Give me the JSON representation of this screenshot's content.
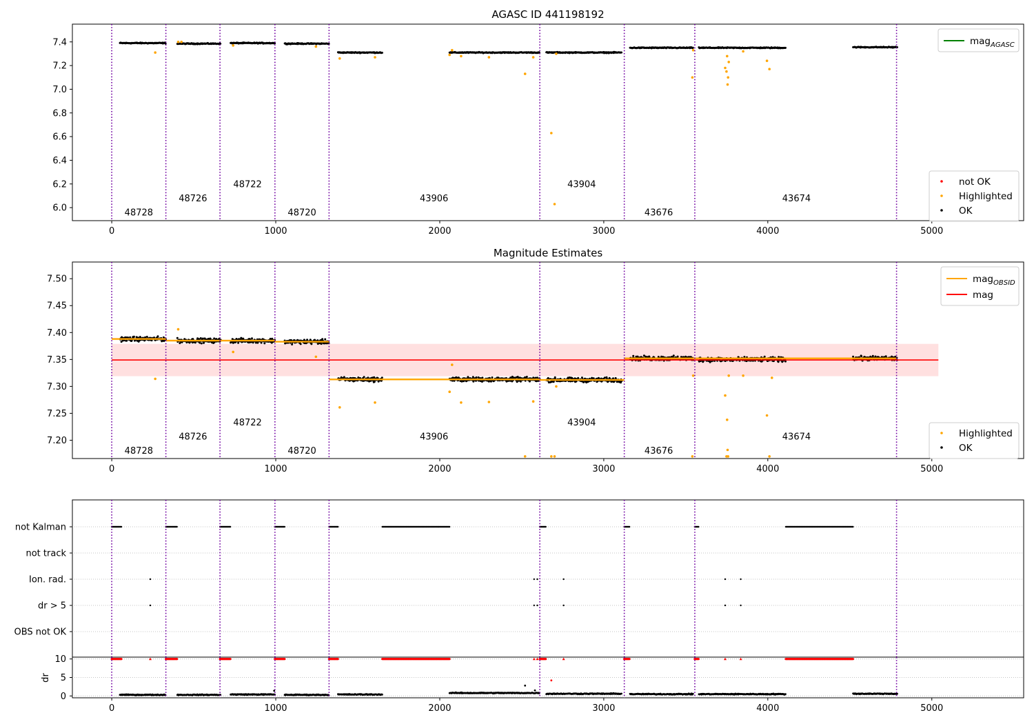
{
  "chart_data": [
    {
      "type": "scatter",
      "title": "AGASC ID 441198192",
      "xlim": [
        -240,
        5560
      ],
      "ylim": [
        5.89,
        7.55
      ],
      "x_ticks": [
        0,
        1000,
        2000,
        3000,
        4000,
        5000
      ],
      "y_ticks": [
        6.0,
        6.2,
        6.4,
        6.6,
        6.8,
        7.0,
        7.2,
        7.4
      ],
      "grid": false,
      "legend_upper": {
        "placement": "top-right",
        "entries": [
          {
            "label": "mag",
            "sub": "AGASC",
            "color": "#008000",
            "kind": "line"
          }
        ]
      },
      "legend_lower": {
        "placement": "bottom-right",
        "entries": [
          {
            "label": "not OK",
            "color": "#ff0000",
            "kind": "dot"
          },
          {
            "label": "Highlighted",
            "color": "#ffa500",
            "kind": "dot"
          },
          {
            "label": "OK",
            "color": "#000000",
            "kind": "dot"
          }
        ]
      },
      "obs_labels": [
        {
          "text": "48728",
          "x": 165,
          "y": 5.96
        },
        {
          "text": "48726",
          "x": 495,
          "y": 6.08
        },
        {
          "text": "48722",
          "x": 828,
          "y": 6.2
        },
        {
          "text": "48720",
          "x": 1160,
          "y": 5.96
        },
        {
          "text": "43906",
          "x": 1965,
          "y": 6.08
        },
        {
          "text": "43904",
          "x": 2865,
          "y": 6.2
        },
        {
          "text": "43676",
          "x": 3335,
          "y": 5.96
        },
        {
          "text": "43674",
          "x": 4175,
          "y": 6.08
        }
      ],
      "ok_segments": [
        {
          "x": [
            50,
            330
          ],
          "y": 7.39
        },
        {
          "x": [
            400,
            665
          ],
          "y": 7.385
        },
        {
          "x": [
            725,
            995
          ],
          "y": 7.39
        },
        {
          "x": [
            1055,
            1325
          ],
          "y": 7.385
        },
        {
          "x": [
            1380,
            1650
          ],
          "y": 7.31
        },
        {
          "x": [
            2060,
            2610
          ],
          "y": 7.31
        },
        {
          "x": [
            2650,
            3110
          ],
          "y": 7.31
        },
        {
          "x": [
            3160,
            3545
          ],
          "y": 7.35
        },
        {
          "x": [
            3580,
            4110
          ],
          "y": 7.35
        },
        {
          "x": [
            4520,
            4790
          ],
          "y": 7.355
        }
      ],
      "highlighted": [
        {
          "x": 265,
          "y": 7.31
        },
        {
          "x": 405,
          "y": 7.4
        },
        {
          "x": 425,
          "y": 7.4
        },
        {
          "x": 740,
          "y": 7.37
        },
        {
          "x": 1245,
          "y": 7.36
        },
        {
          "x": 1390,
          "y": 7.26
        },
        {
          "x": 1605,
          "y": 7.27
        },
        {
          "x": 2060,
          "y": 7.29
        },
        {
          "x": 2075,
          "y": 7.33
        },
        {
          "x": 2130,
          "y": 7.28
        },
        {
          "x": 2300,
          "y": 7.27
        },
        {
          "x": 2520,
          "y": 7.13
        },
        {
          "x": 2570,
          "y": 7.27
        },
        {
          "x": 2680,
          "y": 6.63
        },
        {
          "x": 2700,
          "y": 6.03
        },
        {
          "x": 2710,
          "y": 7.3
        },
        {
          "x": 3540,
          "y": 7.1
        },
        {
          "x": 3545,
          "y": 7.33
        },
        {
          "x": 3740,
          "y": 7.18
        },
        {
          "x": 3748,
          "y": 7.15
        },
        {
          "x": 3752,
          "y": 7.28
        },
        {
          "x": 3758,
          "y": 7.1
        },
        {
          "x": 3755,
          "y": 7.04
        },
        {
          "x": 3762,
          "y": 7.23
        },
        {
          "x": 3850,
          "y": 7.32
        },
        {
          "x": 3995,
          "y": 7.24
        },
        {
          "x": 4010,
          "y": 7.17
        }
      ],
      "not_ok": [],
      "vlines_x": [
        0,
        330,
        660,
        995,
        1325,
        2610,
        3125,
        3555,
        4785
      ]
    },
    {
      "type": "scatter",
      "title": "Magnitude Estimates",
      "xlim": [
        -240,
        5560
      ],
      "ylim": [
        7.166,
        7.531
      ],
      "x_ticks": [
        0,
        1000,
        2000,
        3000,
        4000,
        5000
      ],
      "y_ticks": [
        7.2,
        7.25,
        7.3,
        7.35,
        7.4,
        7.45,
        7.5
      ],
      "y_tick_labels": [
        "7.20",
        "7.25",
        "7.30",
        "7.35",
        "7.40",
        "7.45",
        "7.50"
      ],
      "grid": false,
      "mag": {
        "value": 7.349,
        "band": [
          7.319,
          7.379
        ],
        "x": [
          0,
          5040
        ],
        "color": "#ff0000"
      },
      "mag_obsid": [
        {
          "x": [
            0,
            330
          ],
          "y": 7.388
        },
        {
          "x": [
            330,
            660
          ],
          "y": 7.385
        },
        {
          "x": [
            660,
            995
          ],
          "y": 7.385
        },
        {
          "x": [
            995,
            1325
          ],
          "y": 7.383
        },
        {
          "x": [
            1325,
            2610
          ],
          "y": 7.313
        },
        {
          "x": [
            2610,
            3125
          ],
          "y": 7.312
        },
        {
          "x": [
            3125,
            3555
          ],
          "y": 7.352
        },
        {
          "x": [
            3555,
            4785
          ],
          "y": 7.352
        }
      ],
      "legend_upper": {
        "placement": "top-right",
        "entries": [
          {
            "label": "mag",
            "sub": "OBSID",
            "color": "#ffa500",
            "kind": "line"
          },
          {
            "label": "mag",
            "sub": "",
            "color": "#ff0000",
            "kind": "line"
          }
        ]
      },
      "legend_lower": {
        "placement": "bottom-right",
        "entries": [
          {
            "label": "Highlighted",
            "color": "#ffa500",
            "kind": "dot"
          },
          {
            "label": "OK",
            "color": "#000000",
            "kind": "dot"
          }
        ]
      },
      "obs_labels": [
        {
          "text": "48728",
          "x": 165,
          "y": 7.181
        },
        {
          "text": "48726",
          "x": 495,
          "y": 7.207
        },
        {
          "text": "48722",
          "x": 828,
          "y": 7.233
        },
        {
          "text": "48720",
          "x": 1160,
          "y": 7.181
        },
        {
          "text": "43906",
          "x": 1965,
          "y": 7.207
        },
        {
          "text": "43904",
          "x": 2865,
          "y": 7.233
        },
        {
          "text": "43676",
          "x": 3335,
          "y": 7.181
        },
        {
          "text": "43674",
          "x": 4175,
          "y": 7.207
        }
      ],
      "ok_segments": [
        {
          "x": [
            50,
            330
          ],
          "y": 7.388
        },
        {
          "x": [
            400,
            665
          ],
          "y": 7.385
        },
        {
          "x": [
            725,
            995
          ],
          "y": 7.385
        },
        {
          "x": [
            1055,
            1325
          ],
          "y": 7.383
        },
        {
          "x": [
            1380,
            1650
          ],
          "y": 7.313
        },
        {
          "x": [
            2060,
            2610
          ],
          "y": 7.313
        },
        {
          "x": [
            2650,
            3110
          ],
          "y": 7.312
        },
        {
          "x": [
            3160,
            3545
          ],
          "y": 7.352
        },
        {
          "x": [
            3580,
            4110
          ],
          "y": 7.35
        },
        {
          "x": [
            4520,
            4790
          ],
          "y": 7.352
        }
      ],
      "highlighted": [
        {
          "x": 265,
          "y": 7.314
        },
        {
          "x": 405,
          "y": 7.406
        },
        {
          "x": 740,
          "y": 7.364
        },
        {
          "x": 1245,
          "y": 7.355
        },
        {
          "x": 1390,
          "y": 7.261
        },
        {
          "x": 1605,
          "y": 7.27
        },
        {
          "x": 2060,
          "y": 7.29
        },
        {
          "x": 2075,
          "y": 7.34
        },
        {
          "x": 2130,
          "y": 7.27
        },
        {
          "x": 2300,
          "y": 7.271
        },
        {
          "x": 2520,
          "y": 7.17
        },
        {
          "x": 2570,
          "y": 7.272
        },
        {
          "x": 2680,
          "y": 7.17
        },
        {
          "x": 2700,
          "y": 7.17
        },
        {
          "x": 2710,
          "y": 7.3
        },
        {
          "x": 3540,
          "y": 7.17
        },
        {
          "x": 3545,
          "y": 7.32
        },
        {
          "x": 3740,
          "y": 7.283
        },
        {
          "x": 3748,
          "y": 7.17
        },
        {
          "x": 3752,
          "y": 7.238
        },
        {
          "x": 3758,
          "y": 7.17
        },
        {
          "x": 3755,
          "y": 7.182
        },
        {
          "x": 3762,
          "y": 7.32
        },
        {
          "x": 3850,
          "y": 7.32
        },
        {
          "x": 3995,
          "y": 7.246
        },
        {
          "x": 4010,
          "y": 7.17
        },
        {
          "x": 4025,
          "y": 7.316
        }
      ],
      "vlines_x": [
        0,
        330,
        660,
        995,
        1325,
        2610,
        3125,
        3555,
        4785
      ]
    },
    {
      "type": "scatter",
      "title": "",
      "xlim": [
        -240,
        5560
      ],
      "categories": [
        "not Kalman",
        "not track",
        "Ion. rad.",
        "dr > 5",
        "OBS not OK"
      ],
      "grid": "horizontal dotted",
      "flag_segments": [
        {
          "category": "not Kalman",
          "x": [
            [
              0,
              60
            ],
            [
              330,
              400
            ],
            [
              660,
              725
            ],
            [
              995,
              1055
            ],
            [
              1325,
              1380
            ],
            [
              1650,
              2060
            ],
            [
              2610,
              2650
            ],
            [
              3125,
              3160
            ],
            [
              3555,
              3580
            ],
            [
              4110,
              4520
            ]
          ]
        },
        {
          "category": "not track",
          "x": []
        },
        {
          "category": "Ion. rad.",
          "points": [
            235,
            2575,
            2595,
            2755,
            3740,
            3835
          ]
        },
        {
          "category": "dr > 5",
          "points": [
            235,
            2575,
            2595,
            2755,
            3740,
            3835
          ]
        },
        {
          "category": "OBS not OK",
          "x": []
        }
      ],
      "vlines_x": [
        0,
        330,
        660,
        995,
        1325,
        2610,
        3125,
        3555,
        4785
      ]
    },
    {
      "type": "scatter",
      "title": "",
      "xlim": [
        -240,
        5560
      ],
      "ylim": [
        -0.5,
        10.5
      ],
      "ylabel": "dr",
      "y_ticks": [
        0,
        5,
        10
      ],
      "x_ticks": [
        0,
        1000,
        2000,
        3000,
        4000,
        5000
      ],
      "flagged_at_10_ranges": [
        [
          0,
          60
        ],
        [
          330,
          400
        ],
        [
          660,
          725
        ],
        [
          995,
          1055
        ],
        [
          1325,
          1380
        ],
        [
          1650,
          2060
        ],
        [
          2610,
          2650
        ],
        [
          3125,
          3160
        ],
        [
          3555,
          3580
        ],
        [
          4110,
          4520
        ]
      ],
      "flagged_at_10_points": [
        235,
        2575,
        2595,
        2755,
        3740,
        3835
      ],
      "dr_segments": [
        {
          "x": [
            50,
            330
          ],
          "y": 0.3
        },
        {
          "x": [
            400,
            665
          ],
          "y": 0.3
        },
        {
          "x": [
            725,
            995
          ],
          "y": 0.4
        },
        {
          "x": [
            1055,
            1325
          ],
          "y": 0.3
        },
        {
          "x": [
            1380,
            1650
          ],
          "y": 0.4
        },
        {
          "x": [
            2060,
            2610
          ],
          "y": 0.8
        },
        {
          "x": [
            2650,
            3110
          ],
          "y": 0.6
        },
        {
          "x": [
            3160,
            3545
          ],
          "y": 0.5
        },
        {
          "x": [
            3580,
            4110
          ],
          "y": 0.5
        },
        {
          "x": [
            4520,
            4790
          ],
          "y": 0.6
        }
      ],
      "dr_outliers": [
        {
          "x": 2520,
          "y": 2.8
        },
        {
          "x": 2680,
          "y": 4.2
        },
        {
          "x": 990,
          "y": 1.4
        },
        {
          "x": 2580,
          "y": 1.5
        }
      ],
      "vlines_x": [
        0,
        330,
        660,
        995,
        1325,
        2610,
        3125,
        3555,
        4785
      ]
    }
  ]
}
